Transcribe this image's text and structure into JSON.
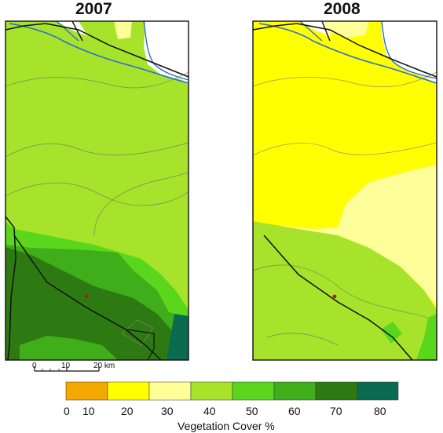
{
  "titles": {
    "left": "2007",
    "right": "2008"
  },
  "scale_bar": {
    "labels": [
      "0",
      "10",
      "20 km"
    ]
  },
  "legend": {
    "title": "Vegetation Cover %",
    "bins": [
      {
        "color": "#f5a800"
      },
      {
        "color": "#ffff00"
      },
      {
        "color": "#ffff99"
      },
      {
        "color": "#a6e32a"
      },
      {
        "color": "#5ad61c"
      },
      {
        "color": "#3fae1a"
      },
      {
        "color": "#2e7a12"
      },
      {
        "color": "#0a6b50"
      }
    ],
    "tick_labels": [
      "0",
      "10",
      "20",
      "30",
      "40",
      "50",
      "60",
      "70",
      "80"
    ]
  },
  "colors": {
    "river": "#2a6ed1",
    "road": "#111111",
    "contour": "#7a8a5a",
    "site_marker": "#c81010"
  }
}
